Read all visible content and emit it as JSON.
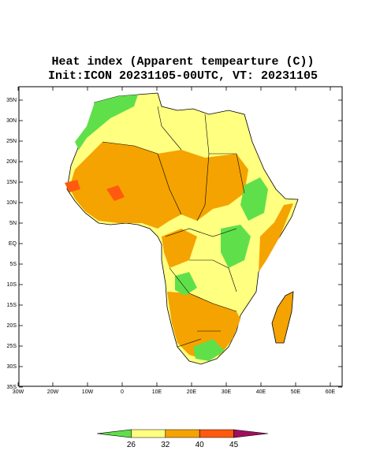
{
  "title": [
    "Heat index (Apparent tempearture (C))",
    "Init:ICON 20231105-00UTC, VT: 20231105"
  ],
  "map": {
    "lon_ticks": [
      {
        "value": -30,
        "label": "30W"
      },
      {
        "value": -20,
        "label": "20W"
      },
      {
        "value": -10,
        "label": "10W"
      },
      0,
      {
        "value": 10,
        "label": "10E"
      },
      {
        "value": 20,
        "label": "20E"
      },
      {
        "value": 30,
        "label": "30E"
      },
      {
        "value": 40,
        "label": "40E"
      },
      {
        "value": 50,
        "label": "50E"
      },
      {
        "value": 60,
        "label": "60E"
      }
    ],
    "lat_ticks": [
      {
        "value": 35,
        "label": "35N"
      },
      {
        "value": 30,
        "label": "30N"
      },
      {
        "value": 25,
        "label": "25N"
      },
      {
        "value": 20,
        "label": "20N"
      },
      {
        "value": 15,
        "label": "15N"
      },
      {
        "value": 10,
        "label": "10N"
      },
      {
        "value": 5,
        "label": "5N"
      },
      {
        "value": 0,
        "label": "EQ"
      },
      {
        "value": -5,
        "label": "5S"
      },
      {
        "value": -10,
        "label": "10S"
      },
      {
        "value": -15,
        "label": "15S"
      },
      {
        "value": -20,
        "label": "20S"
      },
      {
        "value": -25,
        "label": "25S"
      },
      {
        "value": -30,
        "label": "30S"
      },
      {
        "value": -35,
        "label": "35S"
      }
    ]
  },
  "colorbar": {
    "levels": [
      26,
      32,
      40,
      45
    ],
    "colors": [
      "#5fe04a",
      "#ffff80",
      "#f5a300",
      "#ff5a10",
      "#a0105a"
    ]
  }
}
